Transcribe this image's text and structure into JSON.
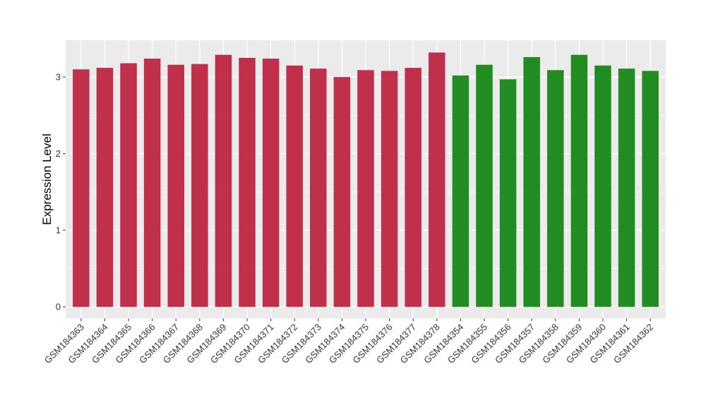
{
  "chart_data": {
    "type": "bar",
    "title": "",
    "xlabel": "",
    "ylabel": "Expression Level",
    "ylim": [
      -0.15,
      3.48
    ],
    "yticks": [
      0,
      1,
      2,
      3
    ],
    "grid": true,
    "legend": "none",
    "categories": [
      "GSM184363",
      "GSM184364",
      "GSM184365",
      "GSM184366",
      "GSM184367",
      "GSM184368",
      "GSM184369",
      "GSM184370",
      "GSM184371",
      "GSM184372",
      "GSM184373",
      "GSM184374",
      "GSM184375",
      "GSM184376",
      "GSM184377",
      "GSM184378",
      "GSM184354",
      "GSM184355",
      "GSM184356",
      "GSM184357",
      "GSM184358",
      "GSM184359",
      "GSM184360",
      "GSM184361",
      "GSM184362"
    ],
    "values": [
      3.1,
      3.12,
      3.18,
      3.24,
      3.16,
      3.17,
      3.29,
      3.25,
      3.24,
      3.15,
      3.11,
      3.0,
      3.09,
      3.08,
      3.12,
      3.32,
      3.02,
      3.16,
      2.97,
      3.26,
      3.09,
      3.29,
      3.15,
      3.11,
      3.08
    ],
    "groups": [
      "red",
      "red",
      "red",
      "red",
      "red",
      "red",
      "red",
      "red",
      "red",
      "red",
      "red",
      "red",
      "red",
      "red",
      "red",
      "red",
      "green",
      "green",
      "green",
      "green",
      "green",
      "green",
      "green",
      "green",
      "green"
    ],
    "colors": {
      "red": "#C1304A",
      "green": "#228B22",
      "panel": "#EBEBEB",
      "grid": "#FFFFFF",
      "tick": "#333333"
    }
  }
}
